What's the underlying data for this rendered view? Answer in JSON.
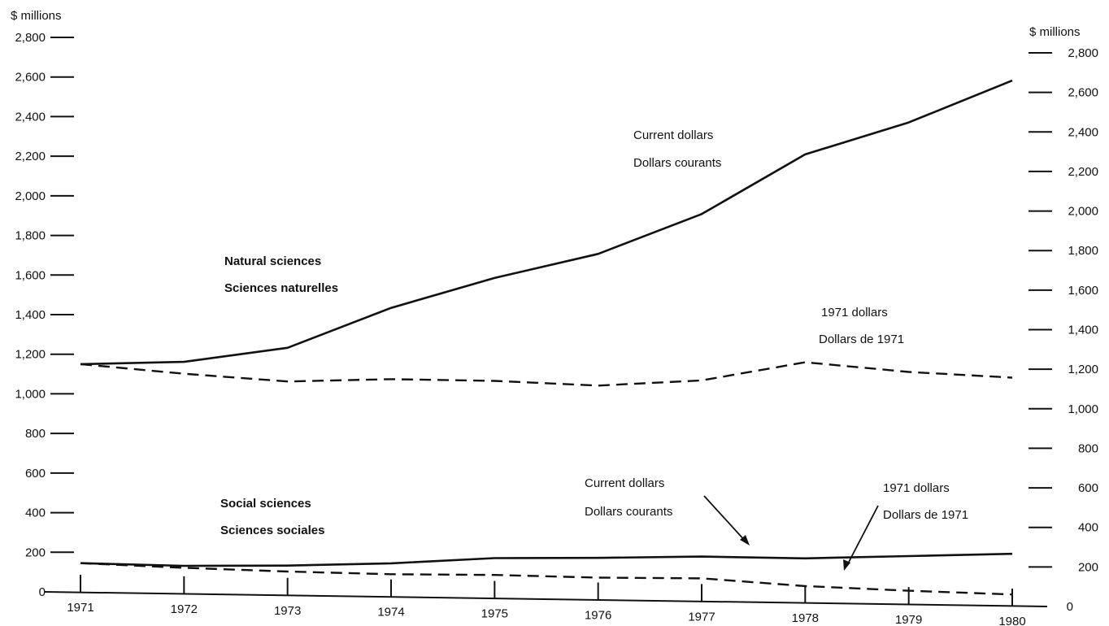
{
  "chart_data": {
    "type": "line",
    "categories": [
      "1971",
      "1972",
      "1973",
      "1974",
      "1975",
      "1976",
      "1977",
      "1978",
      "1979",
      "1980"
    ],
    "ylim": [
      0,
      2800
    ],
    "y_ticks": [
      "0",
      "200",
      "400",
      "600",
      "800",
      "1,000",
      "1,200",
      "1,400",
      "1,600",
      "1,800",
      "2,000",
      "2,200",
      "2,400",
      "2,600",
      "2,800"
    ],
    "left_unit": "$ millions",
    "right_unit": "$ millions",
    "grid": false,
    "series": [
      {
        "group": "natural",
        "style": "solid",
        "values": [
          1150,
          1170,
          1250,
          1460,
          1620,
          1750,
          1960,
          2270,
          2440,
          2660
        ]
      },
      {
        "group": "natural",
        "style": "dashed",
        "values": [
          1150,
          1110,
          1080,
          1100,
          1100,
          1085,
          1120,
          1220,
          1180,
          1160
        ]
      },
      {
        "group": "social",
        "style": "solid",
        "values": [
          145,
          140,
          150,
          170,
          205,
          215,
          230,
          230,
          250,
          270
        ]
      },
      {
        "group": "social",
        "style": "dashed",
        "values": [
          145,
          130,
          120,
          115,
          120,
          115,
          120,
          90,
          75,
          65
        ]
      }
    ],
    "annotations": {
      "natural_group_en": "Natural sciences",
      "natural_group_fr": "Sciences naturelles",
      "natural_current_en": "Current dollars",
      "natural_current_fr": "Dollars courants",
      "natural_constant_en": "1971 dollars",
      "natural_constant_fr": "Dollars de 1971",
      "social_group_en": "Social sciences",
      "social_group_fr": "Sciences sociales",
      "social_current_en": "Current dollars",
      "social_current_fr": "Dollars courants",
      "social_constant_en": "1971 dollars",
      "social_constant_fr": "Dollars de 1971"
    }
  }
}
